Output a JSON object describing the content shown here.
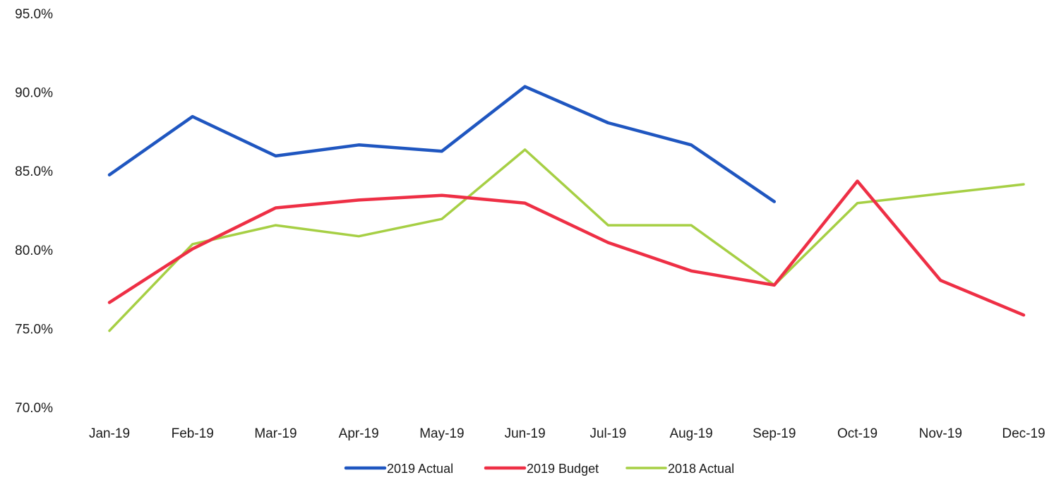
{
  "chart_data": {
    "type": "line",
    "title": "",
    "xlabel": "",
    "ylabel": "",
    "categories": [
      "Jan-19",
      "Feb-19",
      "Mar-19",
      "Apr-19",
      "May-19",
      "Jun-19",
      "Jul-19",
      "Aug-19",
      "Sep-19",
      "Oct-19",
      "Nov-19",
      "Dec-19"
    ],
    "ylim": [
      70,
      95
    ],
    "yticks": [
      70,
      75,
      80,
      85,
      90,
      95
    ],
    "ytick_labels": [
      "70.0%",
      "75.0%",
      "80.0%",
      "85.0%",
      "90.0%",
      "95.0%"
    ],
    "grid": false,
    "legend_position": "bottom",
    "series": [
      {
        "name": "2019 Actual",
        "color": "#1f56c0",
        "values": [
          84.8,
          88.5,
          86.0,
          86.7,
          86.3,
          90.4,
          88.1,
          86.7,
          83.1,
          null,
          null,
          null
        ]
      },
      {
        "name": "2019 Budget",
        "color": "#ee2f45",
        "values": [
          76.7,
          80.1,
          82.7,
          83.2,
          83.5,
          83.0,
          80.5,
          78.7,
          77.8,
          84.4,
          78.1,
          75.9
        ]
      },
      {
        "name": "2018 Actual",
        "color": "#a6cf44",
        "values": [
          74.9,
          80.4,
          81.6,
          80.9,
          82.0,
          86.4,
          81.6,
          81.6,
          77.8,
          83.0,
          83.6,
          84.2
        ]
      }
    ]
  }
}
